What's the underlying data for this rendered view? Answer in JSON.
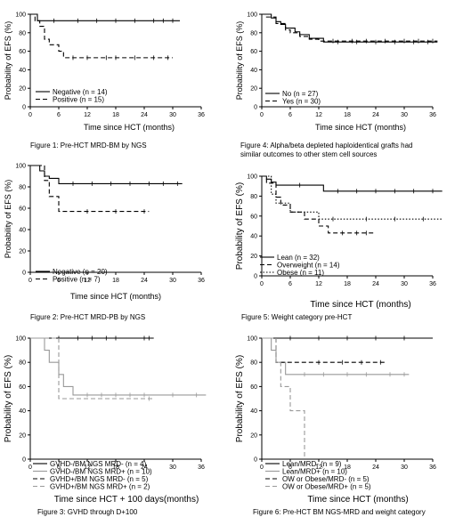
{
  "panels": [
    {
      "caption": "Figure 1: Pre-HCT MRD-BM by NGS",
      "chart_data": {
        "type": "line",
        "title": "",
        "xlabel": "Time since HCT (months)",
        "ylabel": "Probability of EFS (%)",
        "xlim": [
          0,
          36
        ],
        "ylim": [
          0,
          100
        ],
        "xticks": [
          0,
          6,
          12,
          18,
          24,
          30,
          36
        ],
        "yticks": [
          0,
          20,
          40,
          60,
          80,
          100
        ],
        "legend_position": "bottom-left",
        "series": [
          {
            "name": "Negative (n = 14)",
            "style": "solid",
            "color": "#000000",
            "x": [
              0,
              1.5,
              31.5
            ],
            "y": [
              100,
              93,
              93
            ],
            "censor_x": [
              5,
              10,
              14,
              18,
              22,
              26,
              28,
              30
            ]
          },
          {
            "name": "Positive (n = 15)",
            "style": "dashed",
            "color": "#000000",
            "x": [
              0,
              1,
              2,
              3,
              4,
              5,
              6,
              7,
              30
            ],
            "y": [
              100,
              93,
              87,
              73,
              67,
              67,
              60,
              53,
              53
            ],
            "censor_x": [
              9,
              12,
              16,
              18,
              22,
              26,
              29
            ]
          }
        ]
      }
    },
    {
      "caption": "Figure 4: Alpha/beta depleted haploidentical grafts had\nsimilar outcomes to other stem cell sources",
      "chart_data": {
        "type": "line",
        "title": "",
        "xlabel": "Time since HCT (months)",
        "ylabel": "Probability of EFS (%)",
        "xlim": [
          0,
          36
        ],
        "ylim": [
          0,
          100
        ],
        "xticks": [
          0,
          6,
          12,
          18,
          24,
          30,
          36
        ],
        "yticks": [
          0,
          20,
          40,
          60,
          80,
          100
        ],
        "legend_position": "bottom-left",
        "series": [
          {
            "name": "No (n = 27)",
            "style": "solid",
            "color": "#000000",
            "x": [
              0,
              2,
              3,
              4,
              5,
              7,
              8,
              10,
              12,
              13,
              37
            ],
            "y": [
              100,
              96,
              92,
              89,
              85,
              81,
              78,
              74,
              74,
              70,
              70
            ],
            "censor_x": [
              16,
              20,
              24,
              28,
              32,
              35
            ]
          },
          {
            "name": "Yes (n = 30)",
            "style": "dashed",
            "color": "#000000",
            "x": [
              0,
              1,
              3,
              5,
              6,
              8,
              10,
              12,
              37
            ],
            "y": [
              100,
              97,
              90,
              83,
              80,
              76,
              73,
              71,
              71
            ],
            "censor_x": [
              15,
              19,
              22,
              26,
              30,
              33,
              36
            ]
          }
        ]
      }
    },
    {
      "caption": "Figure 2: Pre-HCT MRD-PB by NGS",
      "chart_data": {
        "type": "line",
        "title": "",
        "xlabel": "Time since HCT (months)",
        "ylabel": "Probability of EFS (%)",
        "xlim": [
          0,
          36
        ],
        "ylim": [
          0,
          100
        ],
        "xticks": [
          0,
          6,
          12,
          18,
          24,
          30,
          36
        ],
        "yticks": [
          0,
          20,
          40,
          60,
          80,
          100
        ],
        "legend_position": "bottom-left",
        "series": [
          {
            "name": "Negative (n = 20)",
            "style": "solid",
            "color": "#000000",
            "x": [
              0,
              2,
              3,
              4,
              6,
              32
            ],
            "y": [
              100,
              95,
              90,
              88,
              83,
              83
            ],
            "censor_x": [
              9,
              13,
              17,
              21,
              25,
              28,
              31
            ]
          },
          {
            "name": "Positive (n = 7)",
            "style": "dashed",
            "color": "#000000",
            "x": [
              0,
              3,
              4,
              6,
              25
            ],
            "y": [
              100,
              86,
              71,
              57,
              57
            ],
            "censor_x": [
              12,
              18,
              24
            ]
          }
        ]
      }
    },
    {
      "caption": "Figure 5: Weight category pre-HCT",
      "chart_data": {
        "type": "line",
        "title": "",
        "xlabel": "Time since HCT (months)",
        "ylabel": "Probability of EFS (%)",
        "xlim": [
          0,
          36
        ],
        "ylim": [
          0,
          100
        ],
        "xticks": [
          0,
          6,
          12,
          18,
          24,
          30,
          36
        ],
        "yticks": [
          0,
          20,
          40,
          60,
          80,
          100
        ],
        "legend_position": "bottom-left",
        "series": [
          {
            "name": "Lean (n = 32)",
            "style": "solid",
            "color": "#000000",
            "x": [
              0,
              1,
              2,
              3,
              4,
              6,
              12,
              13,
              38
            ],
            "y": [
              100,
              97,
              94,
              91,
              91,
              91,
              91,
              85,
              85
            ],
            "censor_x": [
              8,
              16,
              20,
              24,
              28,
              32,
              36
            ]
          },
          {
            "name": "Overweight (n = 14)",
            "style": "dashed",
            "color": "#000000",
            "x": [
              0,
              1,
              3,
              4,
              6,
              9,
              12,
              14,
              24
            ],
            "y": [
              100,
              93,
              79,
              71,
              64,
              57,
              50,
              43,
              43
            ],
            "censor_x": [
              17,
              20,
              22
            ]
          },
          {
            "name": "Obese (n = 11)",
            "style": "dotted",
            "color": "#000000",
            "x": [
              0,
              2,
              3,
              6,
              9,
              12,
              38
            ],
            "y": [
              100,
              82,
              73,
              64,
              64,
              57,
              57
            ],
            "censor_x": [
              15,
              22,
              28,
              34
            ]
          }
        ]
      }
    },
    {
      "caption": "Figure 3: GVHD through D+100",
      "chart_data": {
        "type": "line",
        "title": "",
        "xlabel": "Time since HCT + 100 days(months)",
        "ylabel": "Probability of EFS (%)",
        "xlim": [
          0,
          36
        ],
        "ylim": [
          0,
          100
        ],
        "xticks": [
          0,
          6,
          12,
          18,
          24,
          30,
          36
        ],
        "yticks": [
          0,
          20,
          40,
          60,
          80,
          100
        ],
        "legend_position": "bottom-left",
        "series": [
          {
            "name": "GVHD-/BM NGS MRD- (n = 4)",
            "style": "solid",
            "color": "#000000",
            "x": [
              0,
              26
            ],
            "y": [
              100,
              100
            ],
            "censor_x": [
              10,
              18,
              25
            ]
          },
          {
            "name": "GVHD-/BM NGS MRD+ (n = 10)",
            "style": "solid",
            "color": "#999999",
            "x": [
              0,
              3,
              4,
              6,
              7,
              9,
              37
            ],
            "y": [
              100,
              90,
              80,
              70,
              60,
              53,
              53
            ],
            "censor_x": [
              12,
              15,
              18,
              21,
              24,
              30,
              35
            ]
          },
          {
            "name": "GVHD+/BM NGS MRD- (n = 5)",
            "style": "dashed",
            "color": "#000000",
            "x": [
              0,
              25
            ],
            "y": [
              100,
              100
            ],
            "censor_x": [
              6,
              13,
              16,
              24
            ]
          },
          {
            "name": "GVHD+/BM NGS MRD+ (n = 2)",
            "style": "dashed",
            "color": "#999999",
            "x": [
              0,
              5,
              6,
              26
            ],
            "y": [
              100,
              100,
              50,
              50
            ],
            "censor_x": [
              25
            ]
          }
        ]
      }
    },
    {
      "caption": "Figure 6: Pre-HCT BM NGS-MRD and weight category",
      "chart_data": {
        "type": "line",
        "title": "",
        "xlabel": "Time since HCT (months)",
        "ylabel": "Probability of EFS (%)",
        "xlim": [
          0,
          36
        ],
        "ylim": [
          0,
          100
        ],
        "xticks": [
          0,
          6,
          12,
          18,
          24,
          30,
          36
        ],
        "yticks": [
          0,
          20,
          40,
          60,
          80,
          100
        ],
        "legend_position": "bottom-left",
        "series": [
          {
            "name": "Lean/MRD- (n = 9)",
            "style": "solid",
            "color": "#000000",
            "x": [
              0,
              36
            ],
            "y": [
              100,
              100
            ],
            "censor_x": [
              6,
              12,
              18,
              24,
              30
            ]
          },
          {
            "name": "Lean/MRD+ (n = 10)",
            "style": "solid",
            "color": "#999999",
            "x": [
              0,
              2,
              3,
              5,
              31
            ],
            "y": [
              100,
              90,
              80,
              70,
              70
            ],
            "censor_x": [
              9,
              13,
              18,
              22,
              27,
              30
            ]
          },
          {
            "name": "OW or Obese/MRD- (n = 5)",
            "style": "dashed",
            "color": "#000000",
            "x": [
              0,
              3,
              26
            ],
            "y": [
              100,
              80,
              80
            ],
            "censor_x": [
              12,
              17,
              21,
              25
            ]
          },
          {
            "name": "OW or Obese/MRD+ (n = 5)",
            "style": "dashed",
            "color": "#999999",
            "x": [
              0,
              3,
              4,
              6,
              8,
              9
            ],
            "y": [
              100,
              80,
              60,
              40,
              40,
              0
            ],
            "censor_x": []
          }
        ]
      }
    }
  ]
}
